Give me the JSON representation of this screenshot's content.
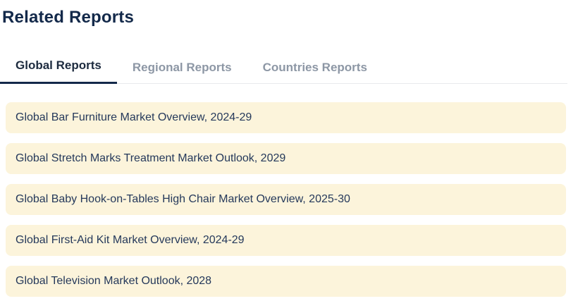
{
  "page": {
    "title": "Related Reports"
  },
  "tabs": [
    {
      "label": "Global Reports",
      "active": true
    },
    {
      "label": "Regional Reports",
      "active": false
    },
    {
      "label": "Countries Reports",
      "active": false
    }
  ],
  "reports": [
    {
      "title": "Global Bar Furniture Market Overview, 2024-29"
    },
    {
      "title": "Global Stretch Marks Treatment Market Outlook, 2029"
    },
    {
      "title": "Global Baby Hook-on-Tables High Chair Market Overview, 2025-30"
    },
    {
      "title": "Global First-Aid Kit Market Overview, 2024-29"
    },
    {
      "title": "Global Television Market Outlook, 2028"
    }
  ],
  "colors": {
    "heading_text": "#13294A",
    "active_tab_text": "#1D2B3F",
    "active_tab_underline": "#13294A",
    "inactive_tab_text": "#8D97A5",
    "tab_border": "#E8EAEC",
    "report_item_background": "#FCF4DB",
    "report_item_text": "#25395B",
    "page_background": "#FFFFFF"
  }
}
